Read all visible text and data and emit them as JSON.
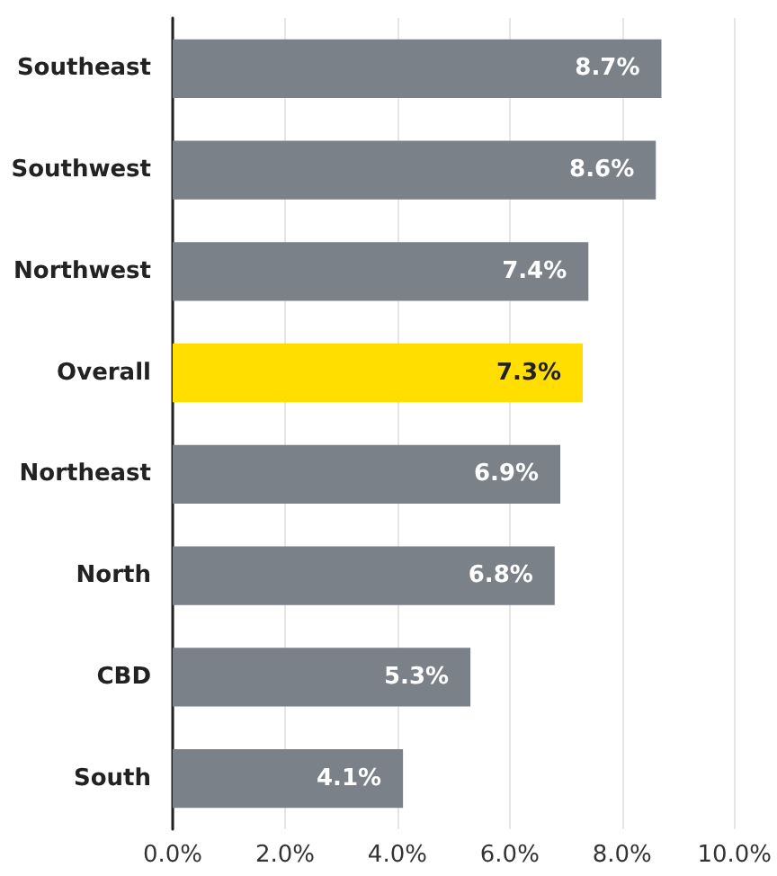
{
  "chart_data": {
    "type": "bar",
    "orientation": "horizontal",
    "categories": [
      "Southeast",
      "Southwest",
      "Northwest",
      "Overall",
      "Northeast",
      "North",
      "CBD",
      "South"
    ],
    "values": [
      8.7,
      8.6,
      7.4,
      7.3,
      6.9,
      6.8,
      5.3,
      4.1
    ],
    "colors": [
      "#7a8189",
      "#7a8189",
      "#7a8189",
      "#ffde00",
      "#7a8189",
      "#7a8189",
      "#7a8189",
      "#7a8189"
    ],
    "value_labels": [
      "8.7%",
      "8.6%",
      "7.4%",
      "7.3%",
      "6.9%",
      "6.8%",
      "5.3%",
      "4.1%"
    ],
    "xlim": [
      0,
      10
    ],
    "xticks": [
      {
        "value": 0,
        "label": "0.0%"
      },
      {
        "value": 2,
        "label": "2.0%"
      },
      {
        "value": 4,
        "label": "4.0%"
      },
      {
        "value": 6,
        "label": "6.0%"
      },
      {
        "value": 8,
        "label": "8.0%"
      },
      {
        "value": 10,
        "label": "10.0%"
      }
    ],
    "grid": "x"
  }
}
